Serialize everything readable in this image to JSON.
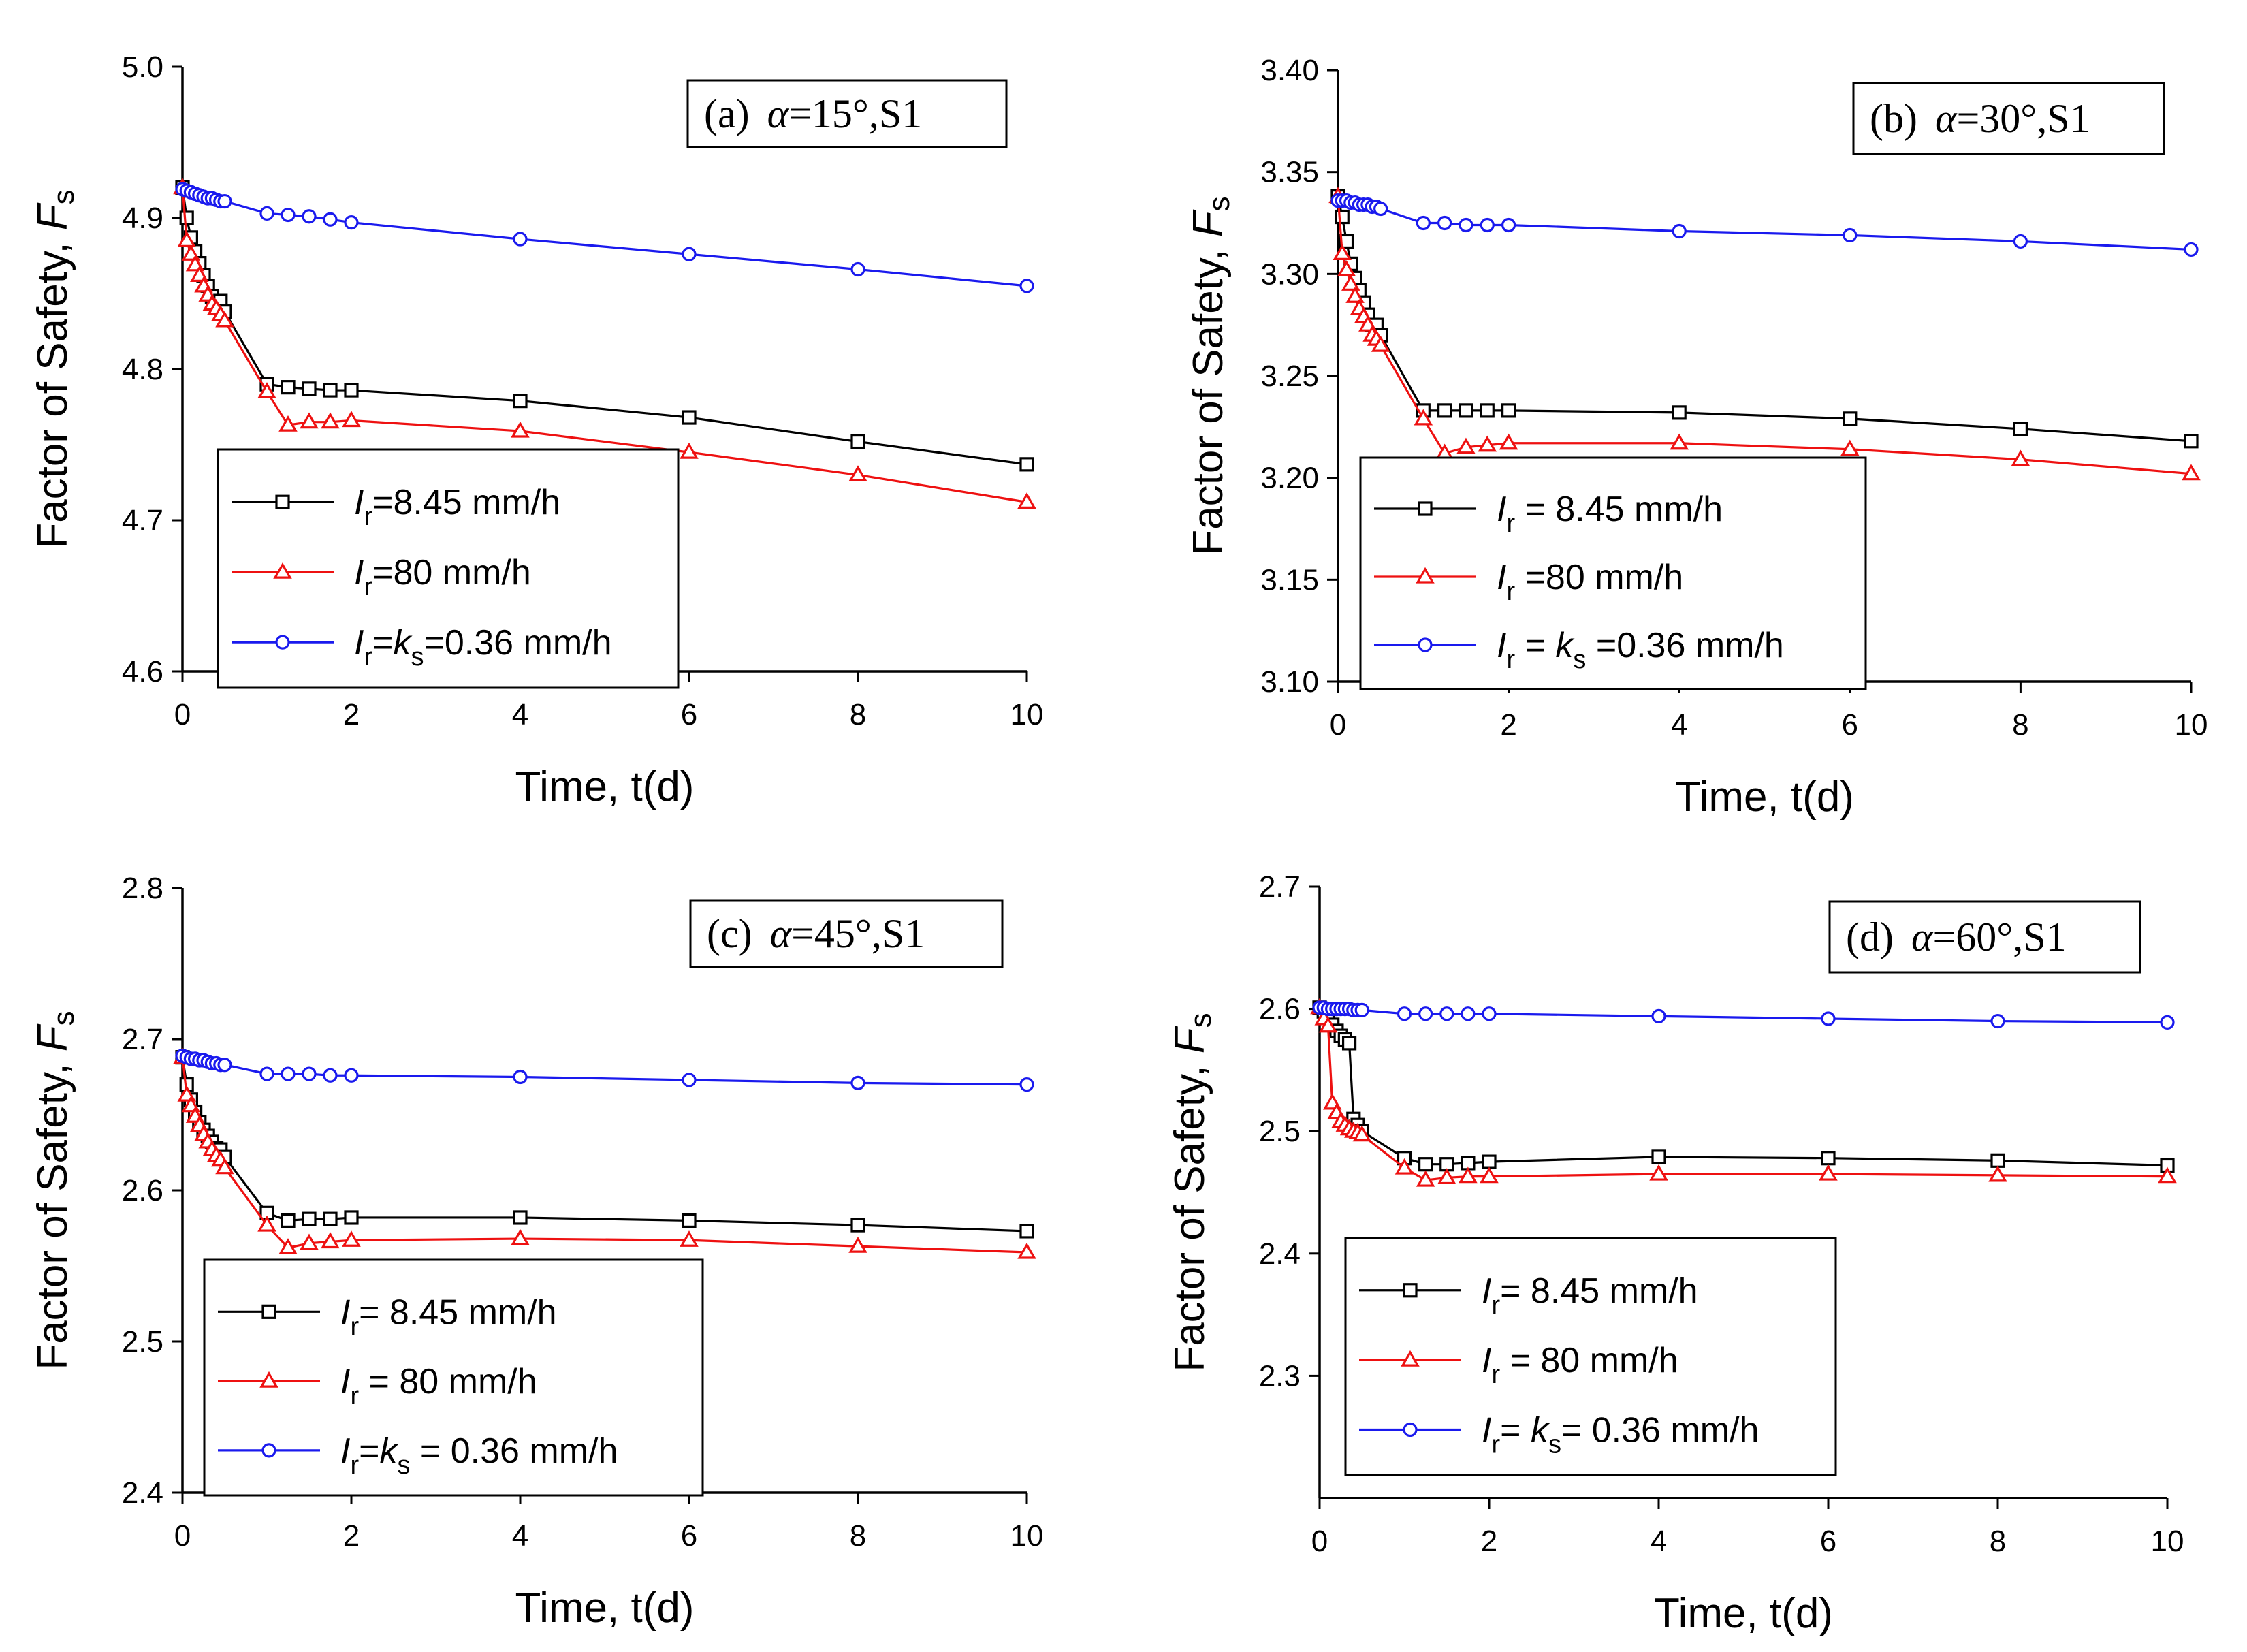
{
  "chart_data": [
    {
      "type": "line",
      "annotation": {
        "label": "(a)",
        "alpha_symbol": "α",
        "alpha_value": "=15°,S1"
      },
      "xlabel": "Time, t(d)",
      "ylabel": {
        "text": "Factor of Safety, ",
        "symbol": "F",
        "subscript": "s"
      },
      "xlim": [
        0,
        10
      ],
      "ylim": [
        4.6,
        5.0
      ],
      "xticks": [
        0,
        2,
        4,
        6,
        8,
        10
      ],
      "yticks": [
        4.6,
        4.7,
        4.8,
        4.9,
        5.0
      ],
      "ytick_labels": [
        "4.6",
        "4.7",
        "4.8",
        "4.9",
        "5.0"
      ],
      "legend_position": "lower-left",
      "series": [
        {
          "name": "Ir=8.45 mm/h",
          "legend": {
            "main": "I",
            "sub": "r",
            "rest": "=8.45 mm/h"
          },
          "color": "#000000",
          "marker": "square",
          "x": [
            0,
            0.05,
            0.1,
            0.15,
            0.2,
            0.25,
            0.3,
            0.35,
            0.4,
            0.45,
            0.5,
            1.0,
            1.25,
            1.5,
            1.75,
            2.0,
            4.0,
            6.0,
            8.0,
            10.0
          ],
          "y": [
            4.92,
            4.9,
            4.887,
            4.878,
            4.87,
            4.862,
            4.855,
            4.848,
            4.842,
            4.845,
            4.838,
            4.79,
            4.788,
            4.787,
            4.786,
            4.786,
            4.779,
            4.768,
            4.752,
            4.737
          ]
        },
        {
          "name": "Ir=80 mm/h",
          "legend": {
            "main": "I",
            "sub": "r",
            "rest": "=80 mm/h"
          },
          "color": "#ee1111",
          "marker": "triangle",
          "x": [
            0,
            0.05,
            0.1,
            0.15,
            0.2,
            0.25,
            0.3,
            0.35,
            0.4,
            0.45,
            0.5,
            1.0,
            1.25,
            1.5,
            1.75,
            2.0,
            4.0,
            6.0,
            8.0,
            10.0
          ],
          "y": [
            4.92,
            4.885,
            4.876,
            4.869,
            4.862,
            4.855,
            4.849,
            4.843,
            4.84,
            4.836,
            4.832,
            4.785,
            4.763,
            4.765,
            4.765,
            4.766,
            4.759,
            4.745,
            4.73,
            4.712
          ]
        },
        {
          "name": "Ir=ks=0.36 mm/h",
          "legend": {
            "main": "I",
            "sub": "r",
            "rest": "=",
            "main2": "k",
            "sub2": "s",
            "rest2": "=0.36 mm/h"
          },
          "color": "#1a1aee",
          "marker": "circle",
          "x": [
            0,
            0.05,
            0.1,
            0.15,
            0.2,
            0.25,
            0.3,
            0.35,
            0.4,
            0.45,
            0.5,
            1.0,
            1.25,
            1.5,
            1.75,
            2.0,
            4.0,
            6.0,
            8.0,
            10.0
          ],
          "y": [
            4.919,
            4.918,
            4.917,
            4.916,
            4.915,
            4.914,
            4.913,
            4.913,
            4.912,
            4.911,
            4.911,
            4.903,
            4.902,
            4.901,
            4.899,
            4.897,
            4.886,
            4.876,
            4.866,
            4.855
          ]
        }
      ]
    },
    {
      "type": "line",
      "annotation": {
        "label": "(b)",
        "alpha_symbol": "α",
        "alpha_value": "=30°,S1"
      },
      "xlabel": "Time, t(d)",
      "ylabel": {
        "text": "Factor of Safety, ",
        "symbol": "F",
        "subscript": "s"
      },
      "xlim": [
        0,
        10
      ],
      "ylim": [
        3.1,
        3.4
      ],
      "xticks": [
        0,
        2,
        4,
        6,
        8,
        10
      ],
      "yticks": [
        3.1,
        3.15,
        3.2,
        3.25,
        3.3,
        3.35,
        3.4
      ],
      "ytick_labels": [
        "3.10",
        "3.15",
        "3.20",
        "3.25",
        "3.30",
        "3.35",
        "3.40"
      ],
      "legend_position": "lower-left",
      "series": [
        {
          "name": "Ir = 8.45 mm/h",
          "legend": {
            "main": "I",
            "sub": "r",
            "rest": " = 8.45 mm/h"
          },
          "color": "#000000",
          "marker": "square",
          "x": [
            0,
            0.05,
            0.1,
            0.15,
            0.2,
            0.25,
            0.3,
            0.35,
            0.4,
            0.45,
            0.5,
            1.0,
            1.25,
            1.5,
            1.75,
            2.0,
            4.0,
            6.0,
            8.0,
            10.0
          ],
          "y": [
            3.338,
            3.328,
            3.316,
            3.305,
            3.298,
            3.292,
            3.286,
            3.28,
            3.275,
            3.275,
            3.27,
            3.233,
            3.233,
            3.233,
            3.233,
            3.233,
            3.232,
            3.229,
            3.224,
            3.218
          ]
        },
        {
          "name": "Ir =80 mm/h",
          "legend": {
            "main": "I",
            "sub": "r",
            "rest": " =80 mm/h"
          },
          "color": "#ee1111",
          "marker": "triangle",
          "x": [
            0,
            0.05,
            0.1,
            0.15,
            0.2,
            0.25,
            0.3,
            0.35,
            0.4,
            0.45,
            0.5,
            1.0,
            1.25,
            1.5,
            1.75,
            2.0,
            4.0,
            6.0,
            8.0,
            10.0
          ],
          "y": [
            3.338,
            3.31,
            3.302,
            3.295,
            3.289,
            3.283,
            3.279,
            3.275,
            3.27,
            3.268,
            3.265,
            3.229,
            3.212,
            3.215,
            3.216,
            3.217,
            3.217,
            3.214,
            3.209,
            3.202
          ]
        },
        {
          "name": "Ir = ks =0.36 mm/h",
          "legend": {
            "main": "I",
            "sub": "r",
            "rest": " = ",
            "main2": "k",
            "sub2": "s",
            "rest2": " =0.36 mm/h"
          },
          "color": "#1a1aee",
          "marker": "circle",
          "x": [
            0,
            0.05,
            0.1,
            0.15,
            0.2,
            0.25,
            0.3,
            0.35,
            0.4,
            0.45,
            0.5,
            1.0,
            1.25,
            1.5,
            1.75,
            2.0,
            4.0,
            6.0,
            8.0,
            10.0
          ],
          "y": [
            3.336,
            3.336,
            3.336,
            3.335,
            3.335,
            3.334,
            3.334,
            3.334,
            3.333,
            3.333,
            3.332,
            3.325,
            3.325,
            3.324,
            3.324,
            3.324,
            3.321,
            3.319,
            3.316,
            3.312
          ]
        }
      ]
    },
    {
      "type": "line",
      "annotation": {
        "label": "(c)",
        "alpha_symbol": "α",
        "alpha_value": "=45°,S1"
      },
      "xlabel": "Time, t(d)",
      "ylabel": {
        "text": "Factor of Safety, ",
        "symbol": "F",
        "subscript": "s"
      },
      "xlim": [
        0,
        10
      ],
      "ylim": [
        2.4,
        2.8
      ],
      "xticks": [
        0,
        2,
        4,
        6,
        8,
        10
      ],
      "yticks": [
        2.4,
        2.5,
        2.6,
        2.7,
        2.8
      ],
      "ytick_labels": [
        "2.4",
        "2.5",
        "2.6",
        "2.7",
        "2.8"
      ],
      "legend_position": "lower-left",
      "series": [
        {
          "name": "Ir= 8.45 mm/h",
          "legend": {
            "main": "I",
            "sub": "r",
            "rest": "= 8.45 mm/h"
          },
          "color": "#000000",
          "marker": "square",
          "x": [
            0,
            0.05,
            0.1,
            0.15,
            0.2,
            0.25,
            0.3,
            0.35,
            0.4,
            0.45,
            0.5,
            1.0,
            1.25,
            1.5,
            1.75,
            2.0,
            4.0,
            6.0,
            8.0,
            10.0
          ],
          "y": [
            2.688,
            2.67,
            2.66,
            2.652,
            2.645,
            2.64,
            2.636,
            2.632,
            2.628,
            2.627,
            2.622,
            2.585,
            2.58,
            2.581,
            2.581,
            2.582,
            2.582,
            2.58,
            2.577,
            2.573
          ]
        },
        {
          "name": "Ir = 80 mm/h",
          "legend": {
            "main": "I",
            "sub": "r",
            "rest": " = 80 mm/h"
          },
          "color": "#ee1111",
          "marker": "triangle",
          "x": [
            0,
            0.05,
            0.1,
            0.15,
            0.2,
            0.25,
            0.3,
            0.35,
            0.4,
            0.45,
            0.5,
            1.0,
            1.25,
            1.5,
            1.75,
            2.0,
            4.0,
            6.0,
            8.0,
            10.0
          ],
          "y": [
            2.688,
            2.663,
            2.656,
            2.649,
            2.643,
            2.637,
            2.632,
            2.627,
            2.623,
            2.62,
            2.615,
            2.577,
            2.562,
            2.565,
            2.566,
            2.567,
            2.568,
            2.567,
            2.563,
            2.559
          ]
        },
        {
          "name": "Ir=ks = 0.36 mm/h",
          "legend": {
            "main": "I",
            "sub": "r",
            "rest": "=",
            "main2": "k",
            "sub2": "s",
            "rest2": " = 0.36 mm/h"
          },
          "color": "#1a1aee",
          "marker": "circle",
          "x": [
            0,
            0.05,
            0.1,
            0.15,
            0.2,
            0.25,
            0.3,
            0.35,
            0.4,
            0.45,
            0.5,
            1.0,
            1.25,
            1.5,
            1.75,
            2.0,
            4.0,
            6.0,
            8.0,
            10.0
          ],
          "y": [
            2.689,
            2.688,
            2.687,
            2.687,
            2.686,
            2.686,
            2.685,
            2.684,
            2.684,
            2.683,
            2.683,
            2.677,
            2.677,
            2.677,
            2.676,
            2.676,
            2.675,
            2.673,
            2.671,
            2.67
          ]
        }
      ]
    },
    {
      "type": "line",
      "annotation": {
        "label": "(d)",
        "alpha_symbol": "α",
        "alpha_value": "=60°,S1"
      },
      "xlabel": "Time, t(d)",
      "ylabel": {
        "text": "Factor of Safety, ",
        "symbol": "F",
        "subscript": "s"
      },
      "xlim": [
        0,
        10
      ],
      "ylim": [
        2.2,
        2.7
      ],
      "xticks": [
        0,
        2,
        4,
        6,
        8,
        10
      ],
      "yticks": [
        2.3,
        2.4,
        2.5,
        2.6,
        2.7
      ],
      "ytick_labels": [
        "2.3",
        "2.4",
        "2.5",
        "2.6",
        "2.7"
      ],
      "legend_position": "lower-left",
      "series": [
        {
          "name": "Ir= 8.45 mm/h",
          "legend": {
            "main": "I",
            "sub": "r",
            "rest": "= 8.45 mm/h"
          },
          "color": "#000000",
          "marker": "square",
          "x": [
            0,
            0.05,
            0.1,
            0.15,
            0.2,
            0.25,
            0.3,
            0.35,
            0.4,
            0.45,
            0.5,
            1.0,
            1.25,
            1.5,
            1.75,
            2.0,
            4.0,
            6.0,
            8.0,
            10.0
          ],
          "y": [
            2.601,
            2.598,
            2.593,
            2.587,
            2.582,
            2.578,
            2.575,
            2.572,
            2.51,
            2.505,
            2.5,
            2.478,
            2.473,
            2.473,
            2.474,
            2.475,
            2.479,
            2.478,
            2.476,
            2.472
          ]
        },
        {
          "name": "Ir = 80 mm/h",
          "legend": {
            "main": "I",
            "sub": "r",
            "rest": " = 80 mm/h"
          },
          "color": "#ee1111",
          "marker": "triangle",
          "x": [
            0,
            0.05,
            0.1,
            0.15,
            0.2,
            0.25,
            0.3,
            0.35,
            0.4,
            0.45,
            0.5,
            1.0,
            1.25,
            1.5,
            1.75,
            2.0,
            4.0,
            6.0,
            8.0,
            10.0
          ],
          "y": [
            2.601,
            2.592,
            2.586,
            2.523,
            2.515,
            2.508,
            2.505,
            2.502,
            2.5,
            2.499,
            2.497,
            2.47,
            2.46,
            2.462,
            2.463,
            2.463,
            2.465,
            2.465,
            2.464,
            2.463
          ]
        },
        {
          "name": "Ir= ks= 0.36 mm/h",
          "legend": {
            "main": "I",
            "sub": "r",
            "rest": "= ",
            "main2": "k",
            "sub2": "s",
            "rest2": "= 0.36 mm/h"
          },
          "color": "#1a1aee",
          "marker": "circle",
          "x": [
            0,
            0.05,
            0.1,
            0.15,
            0.2,
            0.25,
            0.3,
            0.35,
            0.4,
            0.45,
            0.5,
            1.0,
            1.25,
            1.5,
            1.75,
            2.0,
            4.0,
            6.0,
            8.0,
            10.0
          ],
          "y": [
            2.601,
            2.601,
            2.6,
            2.6,
            2.6,
            2.6,
            2.6,
            2.6,
            2.599,
            2.599,
            2.599,
            2.596,
            2.596,
            2.596,
            2.596,
            2.596,
            2.594,
            2.592,
            2.59,
            2.589
          ]
        }
      ]
    }
  ]
}
